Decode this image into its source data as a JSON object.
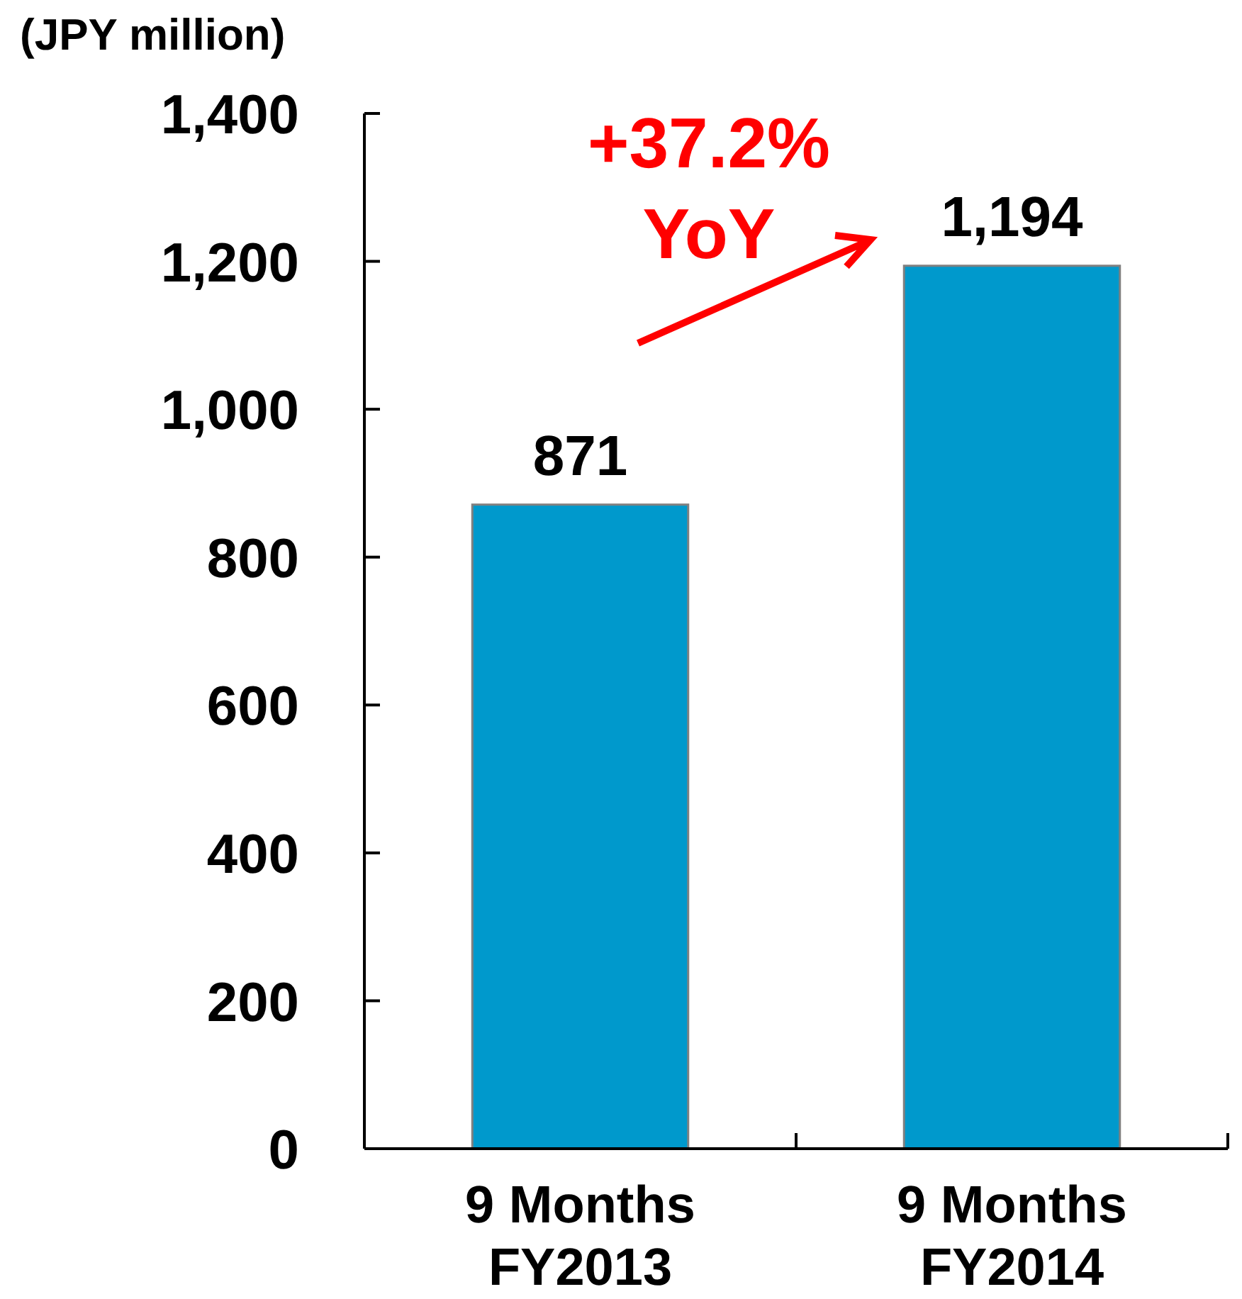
{
  "chart_data": {
    "type": "bar",
    "ylabel": "(JPY million)",
    "categories": [
      "9 Months FY2013",
      "9 Months FY2014"
    ],
    "values": [
      871,
      1194
    ],
    "value_labels": [
      "871",
      "1,194"
    ],
    "color": "#0099cc",
    "ylim": [
      0,
      1400
    ],
    "yticks": [
      0,
      200,
      400,
      600,
      800,
      {
        "value": 1000,
        "label": "1,000"
      },
      {
        "value": 1200,
        "label": "1,200"
      },
      {
        "value": 1400,
        "label": "1,400"
      }
    ],
    "annotations": [
      "+37.2% YoY"
    ]
  }
}
